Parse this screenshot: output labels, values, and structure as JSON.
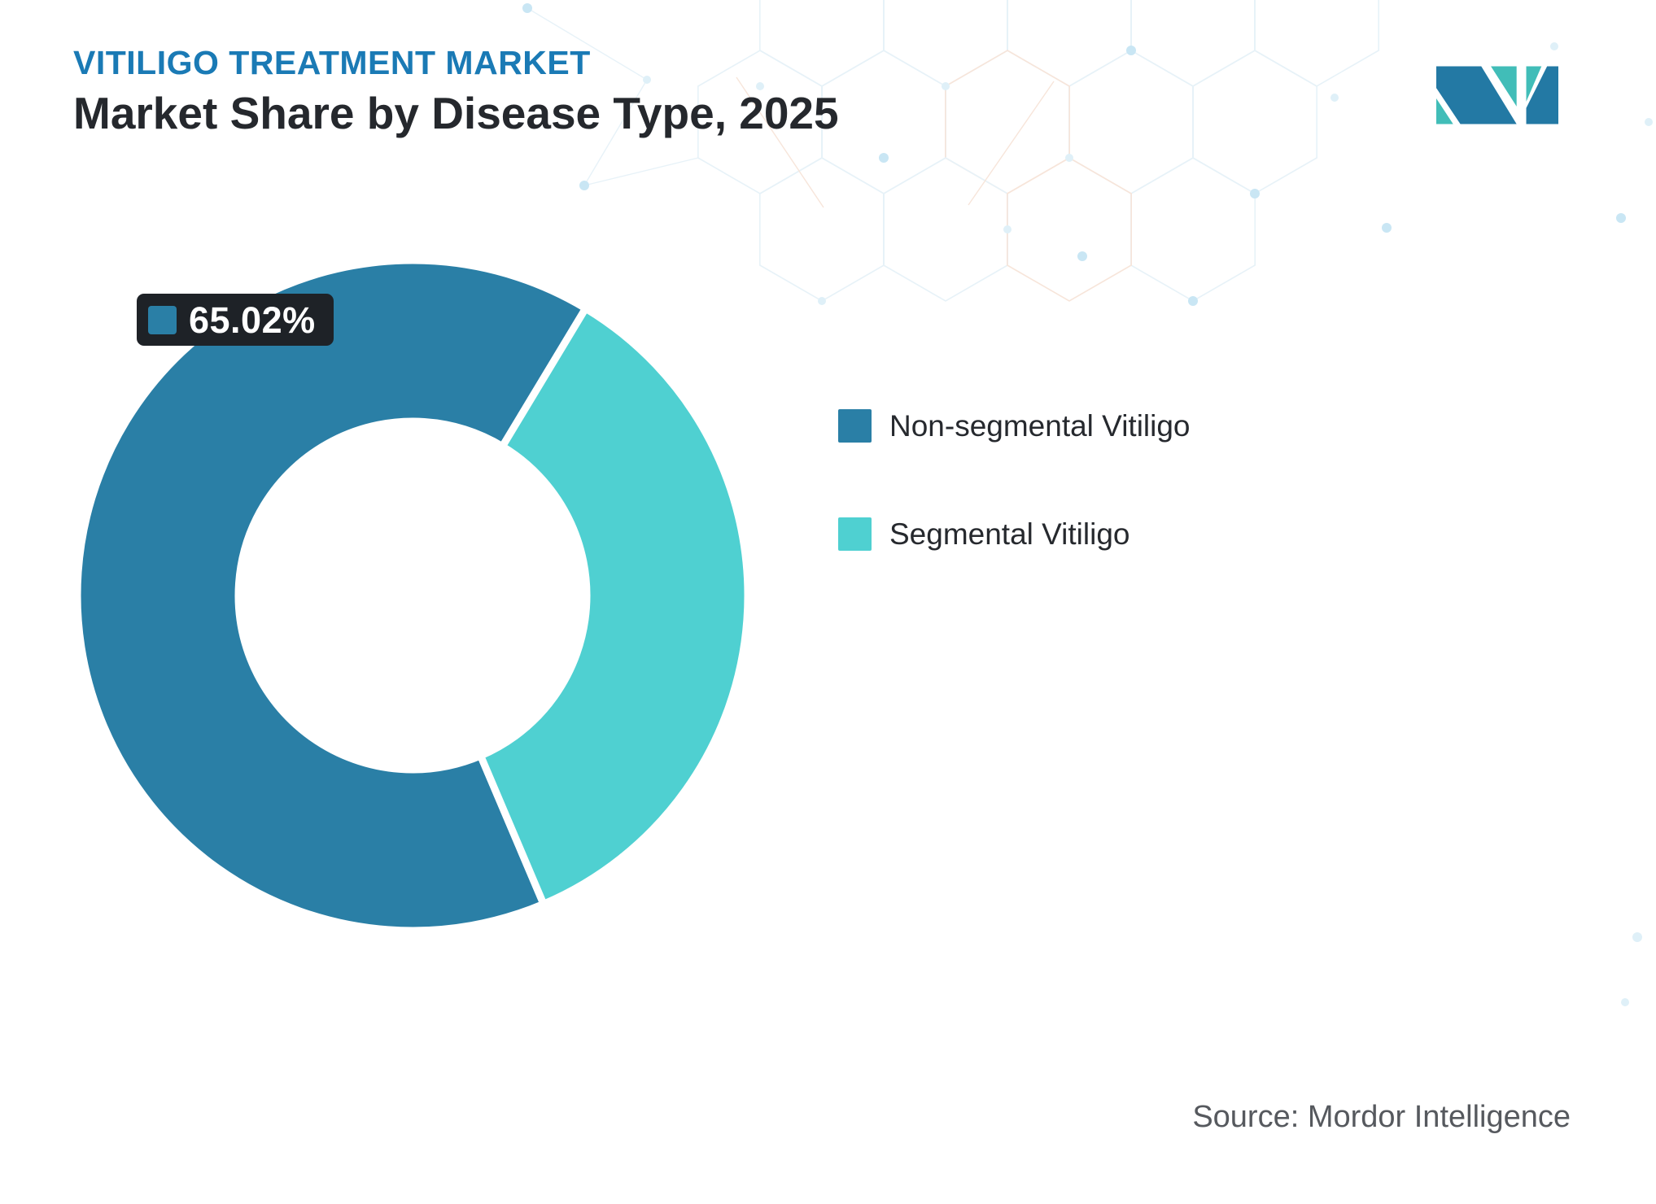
{
  "header": {
    "title": "VITILIGO TREATMENT MARKET",
    "subtitle": "Market Share by Disease Type, 2025"
  },
  "chart_data": {
    "type": "pie",
    "title": "Market Share by Disease Type, 2025",
    "donut": true,
    "inner_radius_ratio": 0.52,
    "start_angle_deg": 157,
    "legend_position": "right",
    "series": [
      {
        "name": "Non-segmental Vitiligo",
        "value": 65.02,
        "color": "#2a7fa6"
      },
      {
        "name": "Segmental Vitiligo",
        "value": 34.98,
        "color": "#4fd0d1"
      }
    ],
    "data_labels": [
      {
        "series": "Non-segmental Vitiligo",
        "text": "65.02%"
      }
    ]
  },
  "legend": {
    "items": [
      {
        "label": "Non-segmental Vitiligo",
        "color": "#2a7fa6"
      },
      {
        "label": "Segmental Vitiligo",
        "color": "#4fd0d1"
      }
    ]
  },
  "source": {
    "text": "Source: Mordor Intelligence"
  },
  "colors": {
    "title_blue": "#1a7ab5",
    "subtitle_dark": "#25282d",
    "slice_blue": "#2a7fa6",
    "slice_teal": "#4fd0d1",
    "label_bg": "#1e2227",
    "legend_text": "#26292e",
    "source_text": "#56595e",
    "logo_blue": "#2379a4",
    "logo_teal": "#41bdb8"
  }
}
